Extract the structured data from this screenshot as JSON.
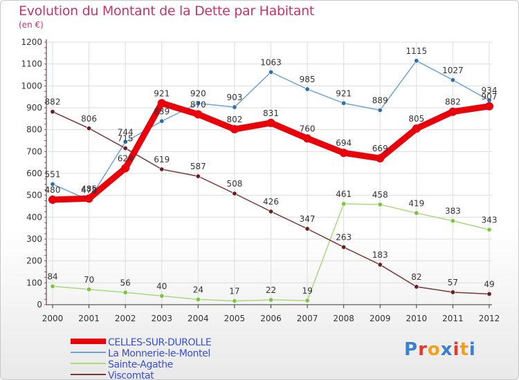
{
  "header": {
    "title": "Evolution du Montant de la Dette par Habitant",
    "subtitle": "(en €)"
  },
  "logo": {
    "text": "Proxiti",
    "letter_colors": [
      "#3a7fd0",
      "#e23b2e",
      "#f2a01c",
      "#3a7fd0",
      "#e23b2e",
      "#f2a01c",
      "#3a7fd0"
    ]
  },
  "chart_data": {
    "type": "line",
    "title": "Evolution du Montant de la Dette par Habitant",
    "subtitle": "(en €)",
    "xlabel": "",
    "ylabel": "",
    "categories": [
      "2000",
      "2001",
      "2002",
      "2003",
      "2004",
      "2005",
      "2006",
      "2007",
      "2008",
      "2009",
      "2010",
      "2011",
      "2012"
    ],
    "ylim": [
      0,
      1200
    ],
    "yticks": [
      0,
      100,
      200,
      300,
      400,
      500,
      600,
      700,
      800,
      900,
      1000,
      1100,
      1200
    ],
    "grid": true,
    "legend_position": "bottom-left",
    "series": [
      {
        "name": "CELLES-SUR-DUROLLE",
        "color": "#e8000b",
        "marker_color": "#e8000b",
        "width": 9,
        "label_color": "#333333",
        "values": [
          480,
          485,
          624,
          921,
          870,
          802,
          831,
          760,
          694,
          669,
          805,
          882,
          907
        ],
        "labels": [
          "480",
          "485",
          "624",
          "921",
          "870",
          "802",
          "831",
          "760",
          "694",
          "669",
          "805",
          "882",
          "907"
        ]
      },
      {
        "name": "La Monnerie-le-Montel",
        "color": "#6da3d3",
        "marker_color": "#2d6fb3",
        "width": 1.5,
        "label_color": "#333333",
        "values": [
          551,
          478,
          744,
          839,
          920,
          903,
          1063,
          985,
          921,
          889,
          1115,
          1027,
          934
        ],
        "labels": [
          "551",
          "478",
          "744",
          "839",
          "920",
          "903",
          "1063",
          "985",
          "921",
          "889",
          "1115",
          "1027",
          "934"
        ]
      },
      {
        "name": "Sainte-Agathe",
        "color": "#a9d97a",
        "marker_color": "#7cc443",
        "width": 1.5,
        "label_color": "#333333",
        "values": [
          84,
          70,
          56,
          40,
          24,
          17,
          22,
          19,
          461,
          458,
          419,
          383,
          343
        ],
        "labels": [
          "84",
          "70",
          "56",
          "40",
          "24",
          "17",
          "22",
          "19",
          "461",
          "458",
          "419",
          "383",
          "343"
        ]
      },
      {
        "name": "Viscomtat",
        "color": "#7a3535",
        "marker_color": "#6b1f1f",
        "width": 1.5,
        "label_color": "#333333",
        "values": [
          882,
          806,
          715,
          619,
          587,
          508,
          426,
          347,
          263,
          183,
          82,
          57,
          49
        ],
        "labels": [
          "882",
          "806",
          "715",
          "619",
          "587",
          "508",
          "426",
          "347",
          "263",
          "183",
          "82",
          "57",
          "49"
        ]
      }
    ]
  }
}
